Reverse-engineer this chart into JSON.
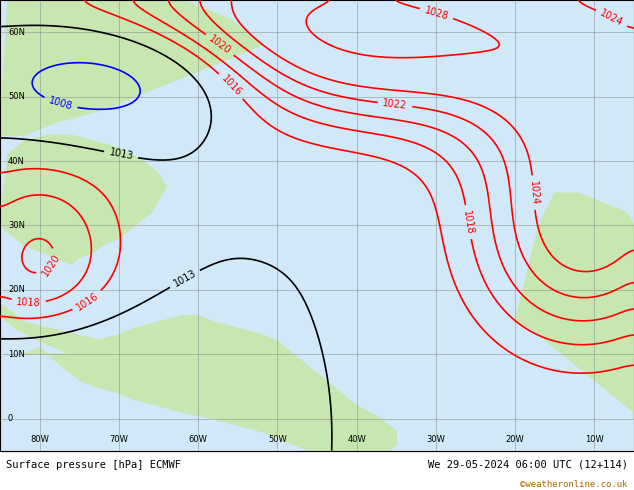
{
  "title_left": "Surface pressure [hPa] ECMWF",
  "title_right": "We 29-05-2024 06:00 UTC (12+114)",
  "credit": "©weatheronline.co.uk",
  "bg_color": "#d0e8f8",
  "land_color": "#c8e6b0",
  "grid_color": "#888888",
  "axis_label_color": "#333333",
  "bottom_bar_color": "#e8e8e8",
  "x_ticks": [
    -80,
    -70,
    -60,
    -50,
    -40,
    -30,
    -20,
    -10
  ],
  "x_tick_labels": [
    "80W",
    "70W",
    "60W",
    "50W",
    "40W",
    "30W",
    "20W",
    "10W"
  ],
  "y_ticks": [
    0,
    10,
    20,
    30,
    40,
    50,
    60
  ],
  "xlim": [
    -85,
    -5
  ],
  "ylim": [
    -5,
    65
  ],
  "figsize": [
    6.34,
    4.9
  ],
  "dpi": 100
}
